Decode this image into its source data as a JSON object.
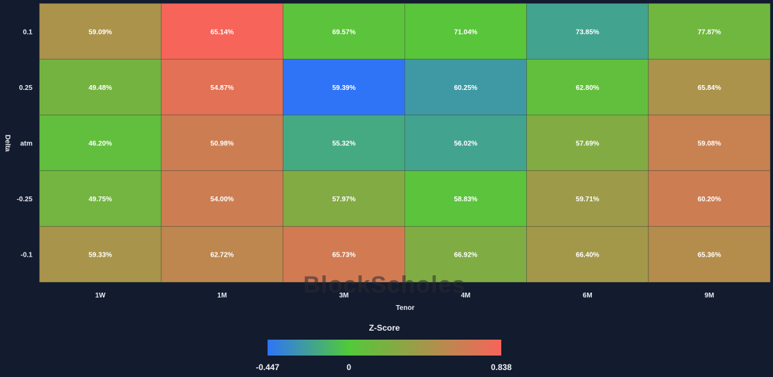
{
  "chart_data": {
    "type": "heatmap",
    "x_categories": [
      "1W",
      "1M",
      "3M",
      "4M",
      "6M",
      "9M"
    ],
    "y_categories": [
      "0.1",
      "0.25",
      "atm",
      "-0.25",
      "-0.1"
    ],
    "xlabel": "Tenor",
    "ylabel": "Delta",
    "labels": [
      [
        "59.09%",
        "65.14%",
        "69.57%",
        "71.04%",
        "73.85%",
        "77.87%"
      ],
      [
        "49.48%",
        "54.87%",
        "59.39%",
        "60.25%",
        "62.80%",
        "65.84%"
      ],
      [
        "46.20%",
        "50.98%",
        "55.32%",
        "56.02%",
        "57.69%",
        "59.08%"
      ],
      [
        "49.75%",
        "54.00%",
        "57.97%",
        "58.83%",
        "59.71%",
        "60.20%"
      ],
      [
        "59.33%",
        "62.72%",
        "65.73%",
        "66.92%",
        "66.40%",
        "65.36%"
      ]
    ],
    "z_scores": [
      [
        0.45,
        0.838,
        0.05,
        0.03,
        -0.2,
        0.15
      ],
      [
        0.18,
        0.73,
        -0.447,
        -0.25,
        0.08,
        0.45
      ],
      [
        0.08,
        0.62,
        -0.17,
        -0.2,
        0.25,
        0.6
      ],
      [
        0.17,
        0.62,
        0.25,
        0.05,
        0.38,
        0.62
      ],
      [
        0.44,
        0.55,
        0.65,
        0.23,
        0.41,
        0.5
      ]
    ],
    "colorbar": {
      "title": "Z-Score",
      "min": -0.447,
      "max": 0.838,
      "tick_labels": [
        "-0.447",
        "0",
        "0.838"
      ],
      "tick_values": [
        -0.447,
        0,
        0.838
      ],
      "colors": [
        "#2f74f7",
        "#52c93a",
        "#f7645a"
      ]
    },
    "watermark": "BlockScholes"
  }
}
